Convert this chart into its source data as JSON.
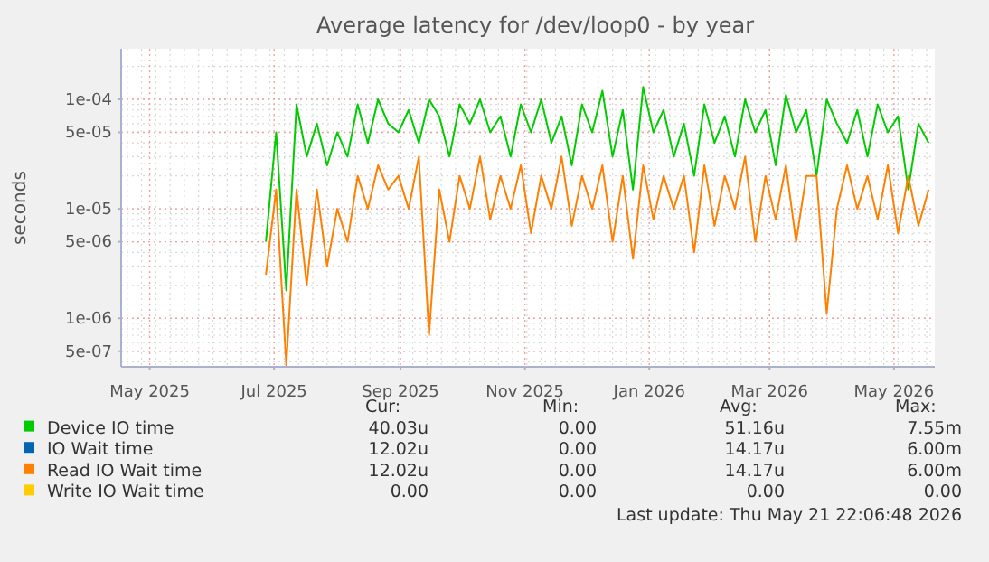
{
  "chart_data": {
    "type": "line",
    "title": "Average latency for /dev/loop0 - by year",
    "ylabel": "seconds",
    "log": true,
    "grid": true,
    "legend": "bottom",
    "xlim": [
      "2025-04-17",
      "2026-05-21"
    ],
    "ylim": [
      3.6e-07,
      0.00029
    ],
    "xticks": [
      {
        "value": "2025-05-01",
        "label": "May 2025"
      },
      {
        "value": "2025-07-01",
        "label": "Jul 2025"
      },
      {
        "value": "2025-09-01",
        "label": "Sep 2025"
      },
      {
        "value": "2025-11-01",
        "label": "Nov 2025"
      },
      {
        "value": "2026-01-01",
        "label": "Jan 2026"
      },
      {
        "value": "2026-03-01",
        "label": "Mar 2026"
      },
      {
        "value": "2026-05-01",
        "label": "May 2026"
      }
    ],
    "yticks": [
      {
        "value": 5e-07,
        "label": "5e-07"
      },
      {
        "value": 1e-06,
        "label": "1e-06"
      },
      {
        "value": 5e-06,
        "label": "5e-06"
      },
      {
        "value": 1e-05,
        "label": "1e-05"
      },
      {
        "value": 5e-05,
        "label": "5e-05"
      },
      {
        "value": 0.0001,
        "label": "1e-04"
      }
    ],
    "x": [
      "2025-06-27",
      "2025-07-02",
      "2025-07-07",
      "2025-07-12",
      "2025-07-17",
      "2025-07-22",
      "2025-07-27",
      "2025-08-01",
      "2025-08-06",
      "2025-08-11",
      "2025-08-16",
      "2025-08-21",
      "2025-08-26",
      "2025-08-31",
      "2025-09-05",
      "2025-09-10",
      "2025-09-15",
      "2025-09-20",
      "2025-09-25",
      "2025-09-30",
      "2025-10-05",
      "2025-10-10",
      "2025-10-15",
      "2025-10-20",
      "2025-10-25",
      "2025-10-30",
      "2025-11-04",
      "2025-11-09",
      "2025-11-14",
      "2025-11-19",
      "2025-11-24",
      "2025-11-29",
      "2025-12-04",
      "2025-12-09",
      "2025-12-14",
      "2025-12-19",
      "2025-12-24",
      "2025-12-29",
      "2026-01-03",
      "2026-01-08",
      "2026-01-13",
      "2026-01-18",
      "2026-01-23",
      "2026-01-28",
      "2026-02-02",
      "2026-02-07",
      "2026-02-12",
      "2026-02-17",
      "2026-02-22",
      "2026-02-27",
      "2026-03-04",
      "2026-03-09",
      "2026-03-14",
      "2026-03-19",
      "2026-03-24",
      "2026-03-29",
      "2026-04-03",
      "2026-04-08",
      "2026-04-13",
      "2026-04-18",
      "2026-04-23",
      "2026-04-28",
      "2026-05-03",
      "2026-05-08",
      "2026-05-13",
      "2026-05-18"
    ],
    "series": [
      {
        "name": "Device IO time",
        "color": "#00cc00",
        "values": [
          5e-06,
          5e-05,
          1.8e-06,
          9e-05,
          3e-05,
          6e-05,
          2.5e-05,
          5e-05,
          3e-05,
          9e-05,
          4e-05,
          0.0001,
          6e-05,
          5e-05,
          8e-05,
          4e-05,
          0.0001,
          7e-05,
          3e-05,
          9e-05,
          6e-05,
          0.0001,
          5e-05,
          7e-05,
          3e-05,
          9e-05,
          5e-05,
          0.0001,
          4e-05,
          7e-05,
          2.5e-05,
          9e-05,
          5e-05,
          0.00012,
          3e-05,
          8e-05,
          1.5e-05,
          0.00013,
          5e-05,
          8e-05,
          3e-05,
          6e-05,
          2e-05,
          9e-05,
          4e-05,
          7e-05,
          3e-05,
          0.0001,
          5e-05,
          8e-05,
          2.5e-05,
          0.00011,
          5e-05,
          8e-05,
          2e-05,
          0.0001,
          6e-05,
          4e-05,
          8e-05,
          3e-05,
          9e-05,
          5e-05,
          7e-05,
          1.5e-05,
          6e-05,
          4e-05
        ]
      },
      {
        "name": "IO Wait time",
        "color": "#0066b3",
        "values": [
          null,
          null,
          null,
          null,
          null,
          null,
          null,
          null,
          null,
          null,
          null,
          null,
          null,
          null,
          null,
          null,
          null,
          null,
          null,
          null,
          null,
          null,
          null,
          null,
          null,
          null,
          null,
          null,
          null,
          null,
          null,
          null,
          null,
          null,
          null,
          null,
          null,
          null,
          null,
          null,
          null,
          null,
          null,
          null,
          null,
          null,
          null,
          null,
          null,
          null,
          null,
          null,
          null,
          null,
          null,
          null,
          null,
          null,
          null,
          null,
          null,
          null,
          null,
          null,
          null,
          null
        ]
      },
      {
        "name": "Read IO Wait time",
        "color": "#ff8000",
        "values": [
          2.5e-06,
          1.5e-05,
          3.7e-07,
          1.5e-05,
          2e-06,
          1.5e-05,
          3e-06,
          1e-05,
          5e-06,
          2e-05,
          1e-05,
          2.5e-05,
          1.5e-05,
          2e-05,
          1e-05,
          3e-05,
          7e-07,
          1.5e-05,
          5e-06,
          2e-05,
          1e-05,
          3e-05,
          8e-06,
          2e-05,
          1e-05,
          2.5e-05,
          6e-06,
          2e-05,
          1e-05,
          3e-05,
          7e-06,
          2e-05,
          1e-05,
          2.5e-05,
          5e-06,
          2e-05,
          3.5e-06,
          2.5e-05,
          8e-06,
          2e-05,
          1e-05,
          2e-05,
          4e-06,
          2.5e-05,
          7e-06,
          2e-05,
          1e-05,
          3e-05,
          5e-06,
          2e-05,
          8e-06,
          2.5e-05,
          5e-06,
          2e-05,
          2e-05,
          1.1e-06,
          1e-05,
          2.5e-05,
          1e-05,
          2e-05,
          8e-06,
          2.5e-05,
          6e-06,
          2e-05,
          7e-06,
          1.5e-05
        ]
      },
      {
        "name": "Write IO Wait time",
        "color": "#ffcc00",
        "values": [
          null,
          null,
          null,
          null,
          null,
          null,
          null,
          null,
          null,
          null,
          null,
          null,
          null,
          null,
          null,
          null,
          null,
          null,
          null,
          null,
          null,
          null,
          null,
          null,
          null,
          null,
          null,
          null,
          null,
          null,
          null,
          null,
          null,
          null,
          null,
          null,
          null,
          null,
          null,
          null,
          null,
          null,
          null,
          null,
          null,
          null,
          null,
          null,
          null,
          null,
          null,
          null,
          null,
          null,
          null,
          null,
          null,
          null,
          null,
          null,
          null,
          null,
          null,
          null,
          null,
          null
        ]
      }
    ],
    "annotations": [
      "Cur:",
      "Min:",
      "Avg:",
      "Max:",
      "40.03u",
      "0.00",
      "51.16u",
      "7.55m",
      "12.02u",
      "0.00",
      "14.17u",
      "6.00m",
      "12.02u",
      "0.00",
      "14.17u",
      "6.00m",
      "0.00",
      "0.00",
      "0.00",
      "0.00",
      "Last update: Thu May 21 22:06:48 2026"
    ]
  }
}
